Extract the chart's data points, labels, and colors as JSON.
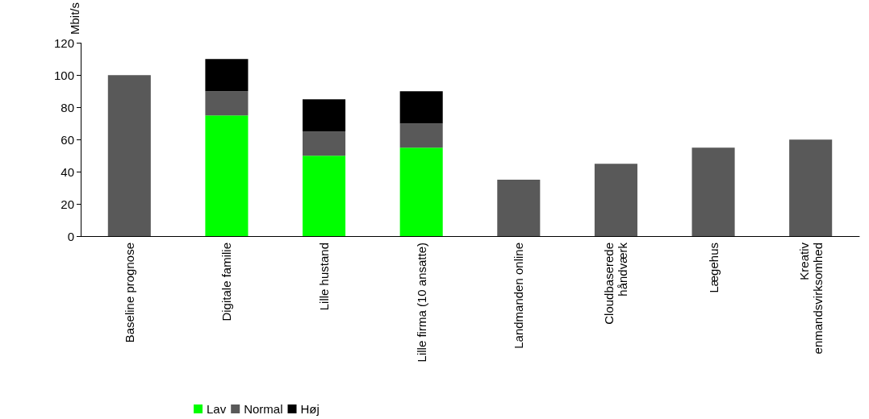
{
  "chart_data": {
    "type": "bar",
    "ylabel": "Mbit/s",
    "stacked": true,
    "categories": [
      "Baseline prognose",
      "Digitale familie",
      "Lille hustand",
      "Lille firma (10 ansatte)",
      "Landmanden online",
      "Cloudbaserede\nhåndværk",
      "Lægehus",
      "Kreativ\nenmandsvirksomhed"
    ],
    "series": [
      {
        "name": "Lav",
        "color": "#00ff00",
        "values": [
          null,
          75,
          50,
          55,
          null,
          null,
          null,
          null
        ]
      },
      {
        "name": "Normal",
        "color": "#595959",
        "values": [
          100,
          15,
          15,
          15,
          35,
          45,
          55,
          60
        ]
      },
      {
        "name": "Høj",
        "color": "#000000",
        "values": [
          null,
          20,
          20,
          20,
          null,
          null,
          null,
          null
        ]
      }
    ],
    "ylim": [
      0,
      120
    ],
    "yticks": [
      0,
      20,
      40,
      60,
      80,
      100,
      120
    ],
    "grid": false,
    "legend": "bottom"
  }
}
